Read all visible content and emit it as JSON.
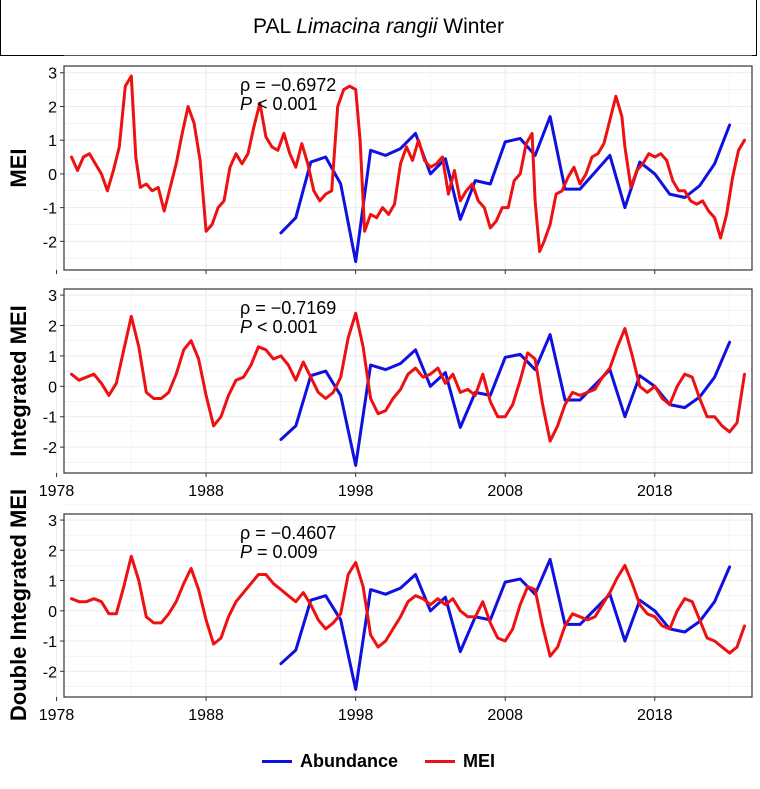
{
  "title": {
    "prefix": "PAL ",
    "species": "Limacina rangii",
    "suffix": " Winter"
  },
  "legend": [
    {
      "label": "Abundance",
      "color": "#1010e0"
    },
    {
      "label": "MEI",
      "color": "#ee1111"
    }
  ],
  "chart_data": [
    {
      "type": "line",
      "ylabel": "MEI",
      "ylim": [
        -2.85,
        3.2
      ],
      "xlim": [
        1978.5,
        2024.5
      ],
      "yticks": [
        -2,
        -1,
        0,
        1,
        2,
        3
      ],
      "xticks": [
        1978,
        1988,
        1998,
        2008,
        2018
      ],
      "show_xtick_labels": false,
      "grid": true,
      "annotation": {
        "rho": "ρ = −0.6972",
        "p": "P < 0.001"
      },
      "series": [
        {
          "name": "Abundance",
          "color": "#1010e0",
          "x": [
            1993,
            1994,
            1995,
            1996,
            1997,
            1998,
            1999,
            2000,
            2001,
            2002,
            2003,
            2004,
            2005,
            2006,
            2007,
            2008,
            2009,
            2010,
            2011,
            2012,
            2013,
            2014,
            2015,
            2016,
            2017,
            2018,
            2019,
            2020,
            2021,
            2022,
            2023
          ],
          "y": [
            -1.75,
            -1.3,
            0.35,
            0.5,
            -0.3,
            -2.6,
            0.7,
            0.55,
            0.75,
            1.2,
            0.0,
            0.45,
            -1.35,
            -0.2,
            -0.3,
            0.95,
            1.05,
            0.55,
            1.7,
            -0.45,
            -0.45,
            0.05,
            0.55,
            -1.0,
            0.35,
            0.0,
            -0.6,
            -0.7,
            -0.35,
            0.3,
            1.45
          ]
        },
        {
          "name": "MEI",
          "color": "#ee1111",
          "x": [
            1979.0,
            1979.4,
            1979.8,
            1980.2,
            1980.6,
            1981.0,
            1981.4,
            1981.8,
            1982.2,
            1982.6,
            1983.0,
            1983.3,
            1983.6,
            1984.0,
            1984.4,
            1984.8,
            1985.2,
            1985.6,
            1986.0,
            1986.4,
            1986.8,
            1987.2,
            1987.6,
            1988.0,
            1988.4,
            1988.8,
            1989.2,
            1989.6,
            1990.0,
            1990.4,
            1990.8,
            1991.2,
            1991.6,
            1992.0,
            1992.4,
            1992.8,
            1993.2,
            1993.6,
            1994.0,
            1994.4,
            1994.8,
            1995.2,
            1995.6,
            1996.0,
            1996.4,
            1996.8,
            1997.2,
            1997.6,
            1998.0,
            1998.3,
            1998.6,
            1999.0,
            1999.4,
            1999.8,
            2000.2,
            2000.6,
            2001.0,
            2001.4,
            2001.8,
            2002.2,
            2002.6,
            2003.0,
            2003.4,
            2003.8,
            2004.2,
            2004.6,
            2005.0,
            2005.4,
            2005.8,
            2006.2,
            2006.6,
            2007.0,
            2007.4,
            2007.8,
            2008.2,
            2008.6,
            2009.0,
            2009.4,
            2009.8,
            2010.0,
            2010.3,
            2010.6,
            2011.0,
            2011.4,
            2011.8,
            2012.2,
            2012.6,
            2013.0,
            2013.4,
            2013.8,
            2014.2,
            2014.6,
            2015.0,
            2015.4,
            2015.8,
            2016.0,
            2016.4,
            2016.8,
            2017.2,
            2017.6,
            2018.0,
            2018.4,
            2018.8,
            2019.2,
            2019.6,
            2020.0,
            2020.4,
            2020.8,
            2021.2,
            2021.6,
            2022.0,
            2022.4,
            2022.8,
            2023.2,
            2023.6,
            2024.0
          ],
          "y": [
            0.5,
            0.1,
            0.5,
            0.6,
            0.3,
            0.0,
            -0.5,
            0.1,
            0.8,
            2.6,
            2.9,
            0.5,
            -0.4,
            -0.3,
            -0.5,
            -0.4,
            -1.1,
            -0.4,
            0.3,
            1.2,
            2.0,
            1.5,
            0.4,
            -1.7,
            -1.5,
            -1.0,
            -0.8,
            0.2,
            0.6,
            0.3,
            0.6,
            1.4,
            2.1,
            1.1,
            0.8,
            0.7,
            1.2,
            0.6,
            0.2,
            0.9,
            0.3,
            -0.5,
            -0.8,
            -0.6,
            -0.5,
            2.0,
            2.5,
            2.6,
            2.5,
            1.0,
            -1.7,
            -1.2,
            -1.3,
            -1.0,
            -1.2,
            -0.9,
            0.3,
            0.8,
            0.4,
            1.0,
            0.4,
            0.2,
            0.3,
            0.5,
            -0.6,
            0.1,
            -0.8,
            -0.5,
            -0.3,
            -0.8,
            -1.0,
            -1.6,
            -1.4,
            -1.0,
            -1.0,
            -0.2,
            0.0,
            0.9,
            1.2,
            -0.8,
            -2.3,
            -2.0,
            -1.5,
            -0.6,
            -0.5,
            -0.1,
            0.2,
            -0.3,
            0.0,
            0.5,
            0.6,
            0.9,
            1.6,
            2.3,
            1.7,
            0.8,
            -0.4,
            0.1,
            0.3,
            0.6,
            0.5,
            0.6,
            0.4,
            -0.2,
            -0.5,
            -0.5,
            -0.8,
            -0.9,
            -0.8,
            -1.1,
            -1.3,
            -1.9,
            -1.2,
            -0.1,
            0.7,
            1.0
          ]
        }
      ]
    },
    {
      "type": "line",
      "ylabel": "Integrated MEI",
      "ylim": [
        -2.85,
        3.2
      ],
      "xlim": [
        1978.5,
        2024.5
      ],
      "yticks": [
        -2,
        -1,
        0,
        1,
        2,
        3
      ],
      "xticks": [
        1978,
        1988,
        1998,
        2008,
        2018
      ],
      "show_xtick_labels": true,
      "grid": true,
      "annotation": {
        "rho": "ρ = −0.7169",
        "p": "P < 0.001"
      },
      "series": [
        {
          "name": "Abundance",
          "color": "#1010e0",
          "x": [
            1993,
            1994,
            1995,
            1996,
            1997,
            1998,
            1999,
            2000,
            2001,
            2002,
            2003,
            2004,
            2005,
            2006,
            2007,
            2008,
            2009,
            2010,
            2011,
            2012,
            2013,
            2014,
            2015,
            2016,
            2017,
            2018,
            2019,
            2020,
            2021,
            2022,
            2023
          ],
          "y": [
            -1.75,
            -1.3,
            0.35,
            0.5,
            -0.3,
            -2.6,
            0.7,
            0.55,
            0.75,
            1.2,
            0.0,
            0.45,
            -1.35,
            -0.2,
            -0.3,
            0.95,
            1.05,
            0.55,
            1.7,
            -0.45,
            -0.45,
            0.05,
            0.55,
            -1.0,
            0.35,
            0.0,
            -0.6,
            -0.7,
            -0.35,
            0.3,
            1.45
          ]
        },
        {
          "name": "MEI",
          "color": "#ee1111",
          "x": [
            1979.0,
            1979.5,
            1980.0,
            1980.5,
            1981.0,
            1981.5,
            1982.0,
            1982.5,
            1983.0,
            1983.5,
            1984.0,
            1984.5,
            1985.0,
            1985.5,
            1986.0,
            1986.5,
            1987.0,
            1987.5,
            1988.0,
            1988.5,
            1989.0,
            1989.5,
            1990.0,
            1990.5,
            1991.0,
            1991.5,
            1992.0,
            1992.5,
            1993.0,
            1993.5,
            1994.0,
            1994.5,
            1995.0,
            1995.5,
            1996.0,
            1996.5,
            1997.0,
            1997.5,
            1998.0,
            1998.5,
            1999.0,
            1999.5,
            2000.0,
            2000.5,
            2001.0,
            2001.5,
            2002.0,
            2002.5,
            2003.0,
            2003.5,
            2004.0,
            2004.5,
            2005.0,
            2005.5,
            2006.0,
            2006.5,
            2007.0,
            2007.5,
            2008.0,
            2008.5,
            2009.0,
            2009.5,
            2010.0,
            2010.5,
            2011.0,
            2011.5,
            2012.0,
            2012.5,
            2013.0,
            2013.5,
            2014.0,
            2014.5,
            2015.0,
            2015.5,
            2016.0,
            2016.5,
            2017.0,
            2017.5,
            2018.0,
            2018.5,
            2019.0,
            2019.5,
            2020.0,
            2020.5,
            2021.0,
            2021.5,
            2022.0,
            2022.5,
            2023.0,
            2023.5,
            2024.0
          ],
          "y": [
            0.4,
            0.2,
            0.3,
            0.4,
            0.1,
            -0.3,
            0.1,
            1.2,
            2.3,
            1.3,
            -0.2,
            -0.4,
            -0.4,
            -0.2,
            0.4,
            1.2,
            1.5,
            0.9,
            -0.3,
            -1.3,
            -1.0,
            -0.3,
            0.2,
            0.3,
            0.7,
            1.3,
            1.2,
            0.9,
            1.0,
            0.7,
            0.2,
            0.8,
            0.3,
            -0.2,
            -0.4,
            -0.2,
            0.3,
            1.6,
            2.4,
            1.3,
            -0.4,
            -0.9,
            -0.8,
            -0.4,
            -0.1,
            0.4,
            0.6,
            0.3,
            0.4,
            0.6,
            0.1,
            0.4,
            -0.2,
            -0.1,
            -0.3,
            0.4,
            -0.5,
            -1.0,
            -1.0,
            -0.6,
            0.2,
            1.1,
            0.9,
            -0.6,
            -1.8,
            -1.3,
            -0.6,
            -0.2,
            -0.3,
            -0.2,
            -0.1,
            0.3,
            0.6,
            1.3,
            1.9,
            1.0,
            0.0,
            -0.2,
            0.0,
            -0.4,
            -0.6,
            0.0,
            0.4,
            0.3,
            -0.4,
            -1.0,
            -1.0,
            -1.3,
            -1.5,
            -1.2,
            0.4
          ]
        }
      ]
    },
    {
      "type": "line",
      "ylabel": "Double Integrated MEI",
      "ylim": [
        -2.85,
        3.2
      ],
      "xlim": [
        1978.5,
        2024.5
      ],
      "yticks": [
        -2,
        -1,
        0,
        1,
        2,
        3
      ],
      "xticks": [
        1978,
        1988,
        1998,
        2008,
        2018
      ],
      "show_xtick_labels": true,
      "grid": true,
      "annotation": {
        "rho": "ρ = −0.4607",
        "p": "P = 0.009"
      },
      "series": [
        {
          "name": "Abundance",
          "color": "#1010e0",
          "x": [
            1993,
            1994,
            1995,
            1996,
            1997,
            1998,
            1999,
            2000,
            2001,
            2002,
            2003,
            2004,
            2005,
            2006,
            2007,
            2008,
            2009,
            2010,
            2011,
            2012,
            2013,
            2014,
            2015,
            2016,
            2017,
            2018,
            2019,
            2020,
            2021,
            2022,
            2023
          ],
          "y": [
            -1.75,
            -1.3,
            0.35,
            0.5,
            -0.3,
            -2.6,
            0.7,
            0.55,
            0.75,
            1.2,
            0.0,
            0.45,
            -1.35,
            -0.2,
            -0.3,
            0.95,
            1.05,
            0.55,
            1.7,
            -0.45,
            -0.45,
            0.05,
            0.55,
            -1.0,
            0.35,
            0.0,
            -0.6,
            -0.7,
            -0.35,
            0.3,
            1.45
          ]
        },
        {
          "name": "MEI",
          "color": "#ee1111",
          "x": [
            1979.0,
            1979.5,
            1980.0,
            1980.5,
            1981.0,
            1981.5,
            1982.0,
            1982.5,
            1983.0,
            1983.5,
            1984.0,
            1984.5,
            1985.0,
            1985.5,
            1986.0,
            1986.5,
            1987.0,
            1987.5,
            1988.0,
            1988.5,
            1989.0,
            1989.5,
            1990.0,
            1990.5,
            1991.0,
            1991.5,
            1992.0,
            1992.5,
            1993.0,
            1993.5,
            1994.0,
            1994.5,
            1995.0,
            1995.5,
            1996.0,
            1996.5,
            1997.0,
            1997.5,
            1998.0,
            1998.5,
            1999.0,
            1999.5,
            2000.0,
            2000.5,
            2001.0,
            2001.5,
            2002.0,
            2002.5,
            2003.0,
            2003.5,
            2004.0,
            2004.5,
            2005.0,
            2005.5,
            2006.0,
            2006.5,
            2007.0,
            2007.5,
            2008.0,
            2008.5,
            2009.0,
            2009.5,
            2010.0,
            2010.5,
            2011.0,
            2011.5,
            2012.0,
            2012.5,
            2013.0,
            2013.5,
            2014.0,
            2014.5,
            2015.0,
            2015.5,
            2016.0,
            2016.5,
            2017.0,
            2017.5,
            2018.0,
            2018.5,
            2019.0,
            2019.5,
            2020.0,
            2020.5,
            2021.0,
            2021.5,
            2022.0,
            2022.5,
            2023.0,
            2023.5,
            2024.0
          ],
          "y": [
            0.4,
            0.3,
            0.3,
            0.4,
            0.3,
            -0.1,
            -0.1,
            0.8,
            1.8,
            1.0,
            -0.2,
            -0.4,
            -0.4,
            -0.1,
            0.3,
            0.9,
            1.4,
            0.7,
            -0.3,
            -1.1,
            -0.9,
            -0.2,
            0.3,
            0.6,
            0.9,
            1.2,
            1.2,
            0.9,
            0.7,
            0.5,
            0.3,
            0.6,
            0.2,
            -0.3,
            -0.6,
            -0.4,
            -0.1,
            1.2,
            1.6,
            0.8,
            -0.8,
            -1.2,
            -1.0,
            -0.6,
            -0.2,
            0.3,
            0.5,
            0.4,
            0.2,
            0.4,
            0.2,
            0.4,
            0.0,
            -0.2,
            -0.2,
            0.3,
            -0.4,
            -0.9,
            -1.0,
            -0.6,
            0.2,
            0.8,
            0.7,
            -0.5,
            -1.5,
            -1.2,
            -0.5,
            -0.1,
            -0.2,
            -0.3,
            -0.2,
            0.2,
            0.6,
            1.1,
            1.5,
            0.9,
            0.2,
            -0.1,
            -0.2,
            -0.5,
            -0.6,
            0.0,
            0.4,
            0.3,
            -0.3,
            -0.9,
            -1.0,
            -1.2,
            -1.4,
            -1.2,
            -0.5
          ]
        }
      ]
    }
  ]
}
